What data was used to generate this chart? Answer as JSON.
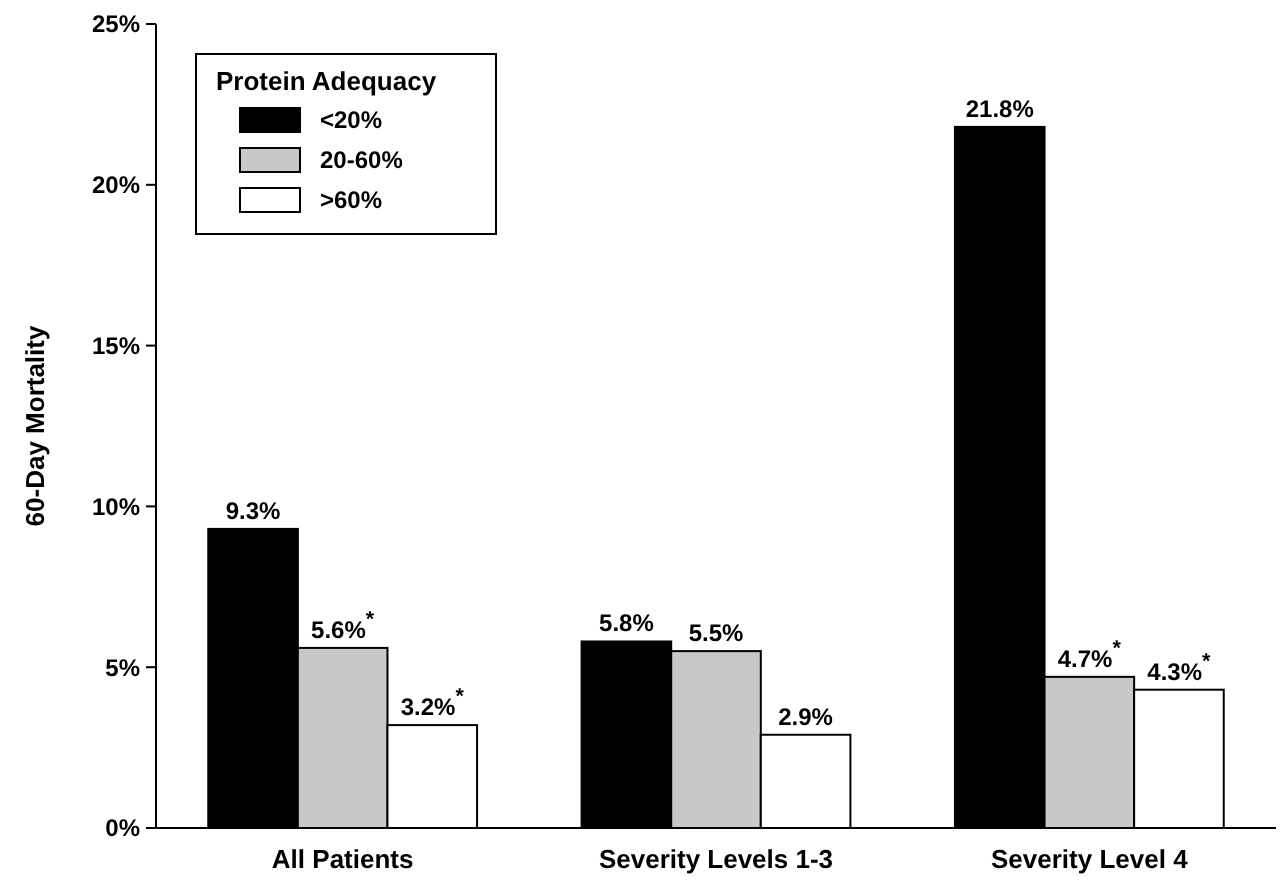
{
  "chart_data": {
    "type": "bar",
    "ylabel": "60-Day Mortality",
    "legend_title": "Protein Adequacy",
    "legend": "top left",
    "categories": [
      "All Patients",
      "Severity Levels 1-3",
      "Severity Level 4"
    ],
    "series": [
      {
        "name": "<20%",
        "color": "#000000",
        "values": [
          9.3,
          5.8,
          21.8
        ],
        "value_labels": [
          "9.3%",
          "5.8%",
          "21.8%"
        ]
      },
      {
        "name": "20-60%",
        "color": "#c8c8c8",
        "values": [
          5.6,
          5.5,
          4.7
        ],
        "value_labels": [
          "5.6%$^{*}$",
          "5.5%",
          "4.7%$^{*}$"
        ]
      },
      {
        "name": ">60%",
        "color": "#ffffff",
        "values": [
          3.2,
          2.9,
          4.3
        ],
        "value_labels": [
          "3.2%$^{*}$",
          "2.9%",
          "4.3%$^{*}$"
        ]
      }
    ],
    "ylim": [
      0,
      25
    ],
    "yticks": [
      {
        "value": 0,
        "label": "0%"
      },
      {
        "value": 5,
        "label": "5%"
      },
      {
        "value": 10,
        "label": "10%"
      },
      {
        "value": 15,
        "label": "15%"
      },
      {
        "value": 20,
        "label": "20%"
      },
      {
        "value": 25,
        "label": "25%"
      }
    ]
  }
}
